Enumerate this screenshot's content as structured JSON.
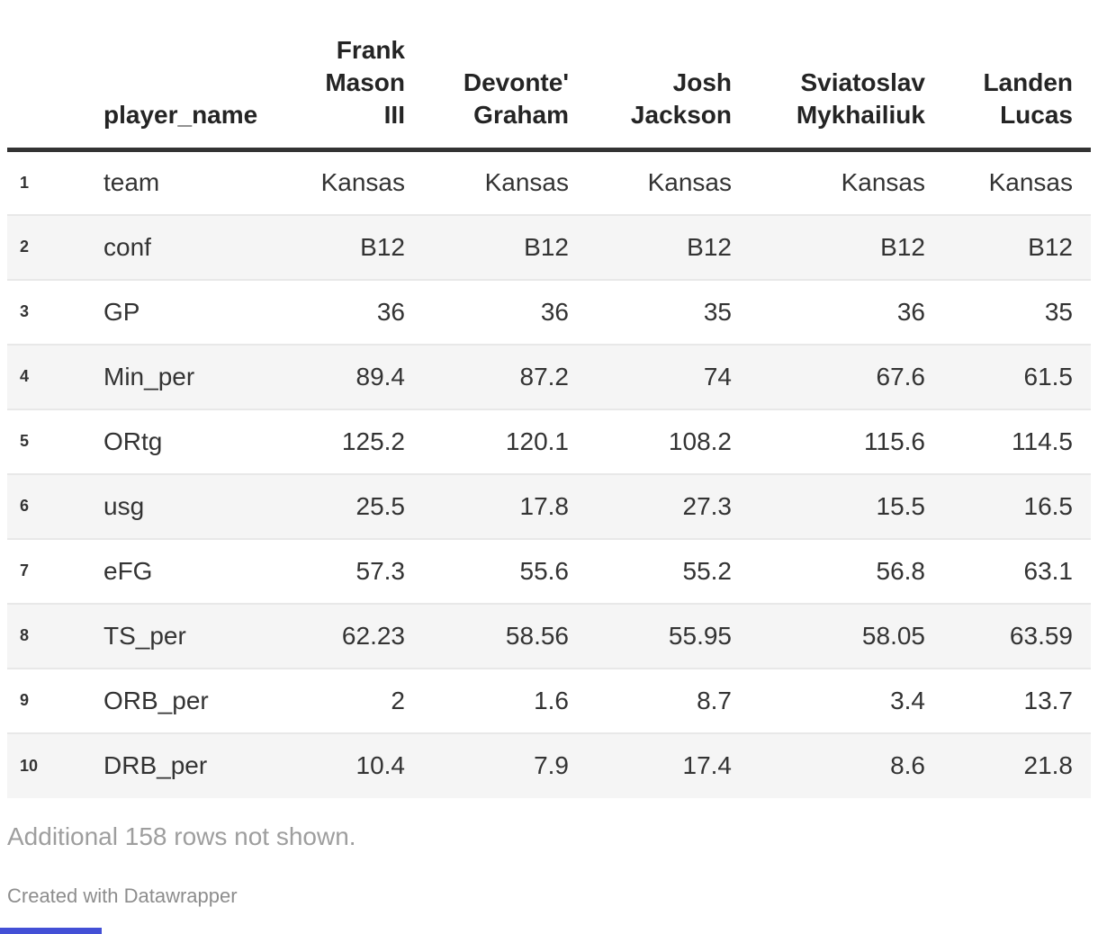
{
  "chart_data": {
    "type": "table",
    "title": "",
    "name_col_label": "player_name",
    "columns": [
      "player_name",
      "Frank Mason III",
      "Devonte' Graham",
      "Josh Jackson",
      "Sviatoslav Mykhailiuk",
      "Landen Lucas"
    ],
    "players": [
      "Frank\nMason\nIII",
      "Devonte'\nGraham",
      "Josh\nJackson",
      "Sviatoslav\nMykhailiuk",
      "Landen\nLucas"
    ],
    "rows": [
      {
        "num": "1",
        "stat": "team",
        "values": [
          "Kansas",
          "Kansas",
          "Kansas",
          "Kansas",
          "Kansas"
        ]
      },
      {
        "num": "2",
        "stat": "conf",
        "values": [
          "B12",
          "B12",
          "B12",
          "B12",
          "B12"
        ]
      },
      {
        "num": "3",
        "stat": "GP",
        "values": [
          "36",
          "36",
          "35",
          "36",
          "35"
        ]
      },
      {
        "num": "4",
        "stat": "Min_per",
        "values": [
          "89.4",
          "87.2",
          "74",
          "67.6",
          "61.5"
        ]
      },
      {
        "num": "5",
        "stat": "ORtg",
        "values": [
          "125.2",
          "120.1",
          "108.2",
          "115.6",
          "114.5"
        ]
      },
      {
        "num": "6",
        "stat": "usg",
        "values": [
          "25.5",
          "17.8",
          "27.3",
          "15.5",
          "16.5"
        ]
      },
      {
        "num": "7",
        "stat": "eFG",
        "values": [
          "57.3",
          "55.6",
          "55.2",
          "56.8",
          "63.1"
        ]
      },
      {
        "num": "8",
        "stat": "TS_per",
        "values": [
          "62.23",
          "58.56",
          "55.95",
          "58.05",
          "63.59"
        ]
      },
      {
        "num": "9",
        "stat": "ORB_per",
        "values": [
          "2",
          "1.6",
          "8.7",
          "3.4",
          "13.7"
        ]
      },
      {
        "num": "10",
        "stat": "DRB_per",
        "values": [
          "10.4",
          "7.9",
          "17.4",
          "8.6",
          "21.8"
        ]
      }
    ],
    "layout": {
      "striped": true,
      "stripe_rows": "even",
      "header_align": "right",
      "values_align": "right"
    }
  },
  "footer": {
    "note": "Additional 158 rows not shown.",
    "attribution": "Created with Datawrapper"
  },
  "colors": {
    "text": "#333333",
    "header_text": "#242424",
    "stripe": "#f5f5f5",
    "separator": "#e8e8e8",
    "header_border": "#333333",
    "note_text": "#9e9e9e",
    "attribution_text": "#8d8d8d",
    "accent_bar": "#4350d6"
  }
}
